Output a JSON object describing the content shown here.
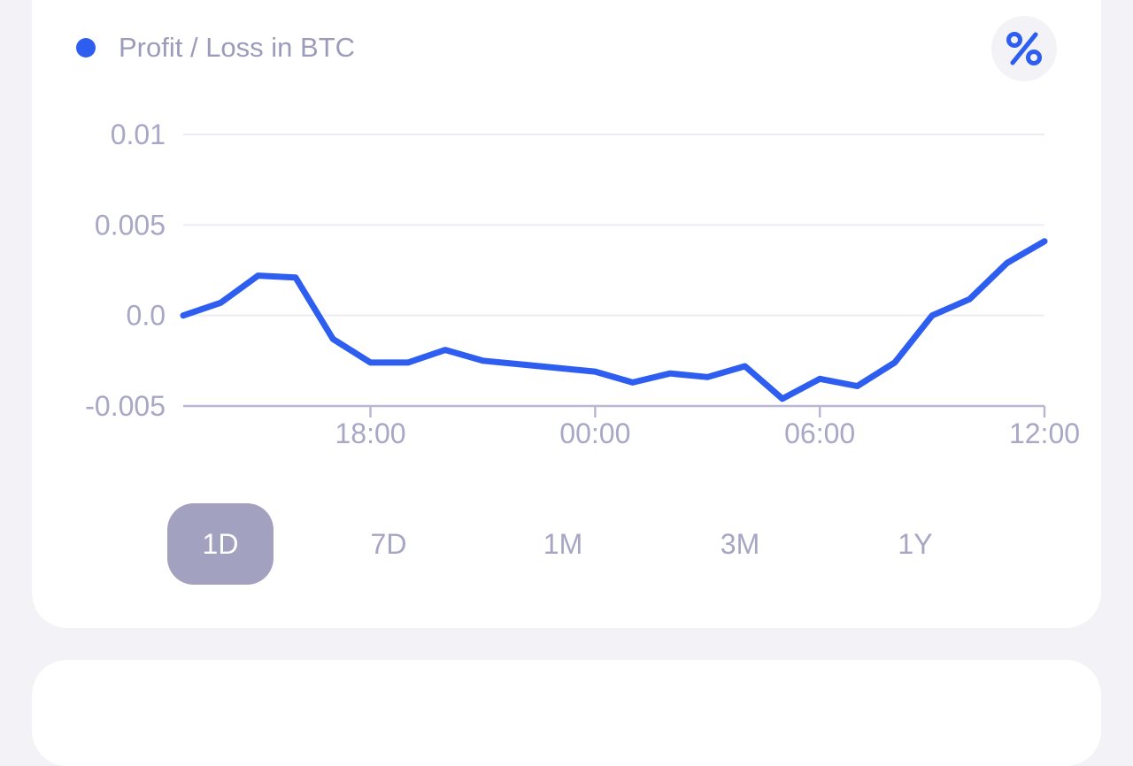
{
  "legend": {
    "label": "Profit / Loss in BTC",
    "dot_color": "#2d5ef0"
  },
  "percent_button": {
    "icon": "percent-icon",
    "color": "#2d5ef0"
  },
  "chart_data": {
    "type": "line",
    "xlabel": "",
    "ylabel": "",
    "x_ticks": [
      "18:00",
      "00:00",
      "06:00",
      "12:00"
    ],
    "y_ticks": [
      "0.01",
      "0.005",
      "0.0",
      "-0.005"
    ],
    "ylim": [
      -0.005,
      0.01
    ],
    "xlim": [
      "13:00",
      "12:00"
    ],
    "grid": true,
    "series": [
      {
        "color": "#2d5ef0",
        "x": [
          "13:00",
          "14:00",
          "15:00",
          "16:00",
          "17:00",
          "18:00",
          "19:00",
          "20:00",
          "21:00",
          "22:00",
          "23:00",
          "00:00",
          "01:00",
          "02:00",
          "03:00",
          "04:00",
          "05:00",
          "06:00",
          "07:00",
          "08:00",
          "09:00",
          "10:00",
          "11:00",
          "12:00"
        ],
        "values": [
          0.0,
          0.0007,
          0.0022,
          0.0021,
          -0.0013,
          -0.0026,
          -0.0026,
          -0.0019,
          -0.0025,
          -0.0027,
          -0.0029,
          -0.0031,
          -0.0037,
          -0.0032,
          -0.0034,
          -0.0028,
          -0.0046,
          -0.0035,
          -0.0039,
          -0.0026,
          0.0,
          0.0009,
          0.0029,
          0.0041
        ]
      }
    ]
  },
  "tabs": [
    {
      "label": "1D",
      "active": true
    },
    {
      "label": "7D",
      "active": false
    },
    {
      "label": "1M",
      "active": false
    },
    {
      "label": "3M",
      "active": false
    },
    {
      "label": "1Y",
      "active": false
    }
  ]
}
